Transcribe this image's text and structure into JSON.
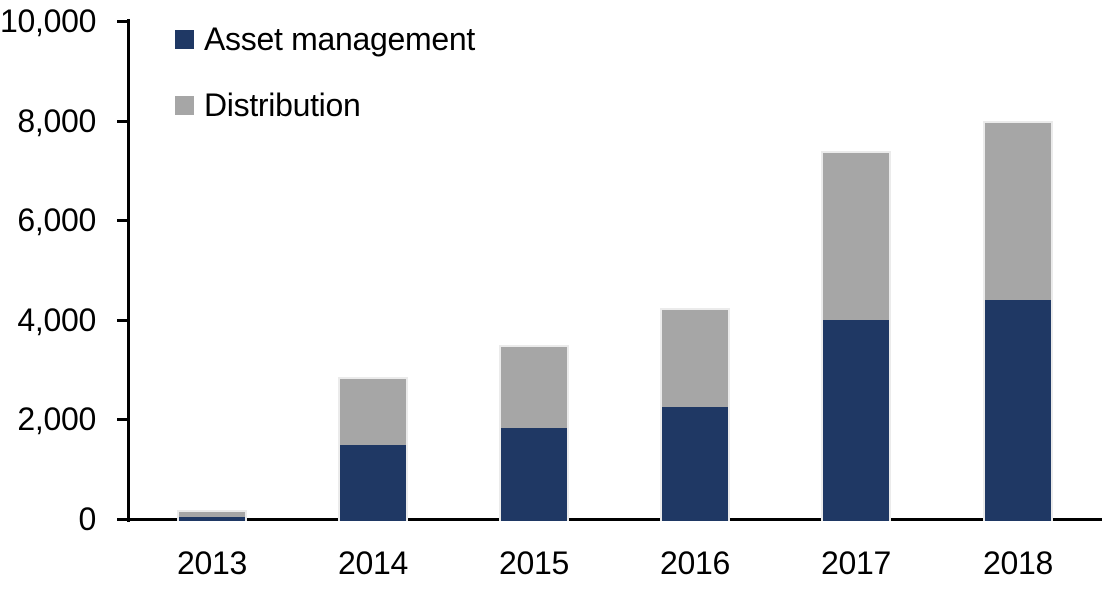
{
  "chart_data": {
    "type": "bar",
    "stacked": true,
    "title": "",
    "xlabel": "",
    "ylabel": "",
    "categories": [
      "2013",
      "2014",
      "2015",
      "2016",
      "2017",
      "2018"
    ],
    "series": [
      {
        "name": "Asset management",
        "color": "#1F3864",
        "values": [
          80,
          1530,
          1870,
          2290,
          4040,
          4430
        ]
      },
      {
        "name": "Distribution",
        "color": "#A6A6A6",
        "values": [
          100,
          1330,
          1630,
          1950,
          3340,
          3570
        ]
      }
    ],
    "stack_totals": [
      180,
      2860,
      3500,
      4240,
      7380,
      8000
    ],
    "ylim": [
      0,
      10000
    ],
    "y_ticks": [
      {
        "value": 10000,
        "label": "10,000"
      },
      {
        "value": 8000,
        "label": "8,000"
      },
      {
        "value": 6000,
        "label": "6,000"
      },
      {
        "value": 4000,
        "label": "4,000"
      },
      {
        "value": 2000,
        "label": "2,000"
      },
      {
        "value": 0,
        "label": "0"
      }
    ],
    "grid": false,
    "legend_position": "top-left"
  },
  "legend": {
    "items": [
      {
        "label": "Asset management",
        "color": "#1F3864",
        "swatch": "navy-square"
      },
      {
        "label": "Distribution",
        "color": "#A6A6A6",
        "swatch": "gray-square"
      }
    ]
  },
  "colors": {
    "axis": "#000000",
    "text": "#000000",
    "background": "#FFFFFF",
    "asset_management": "#1F3864",
    "distribution": "#A6A6A6"
  }
}
